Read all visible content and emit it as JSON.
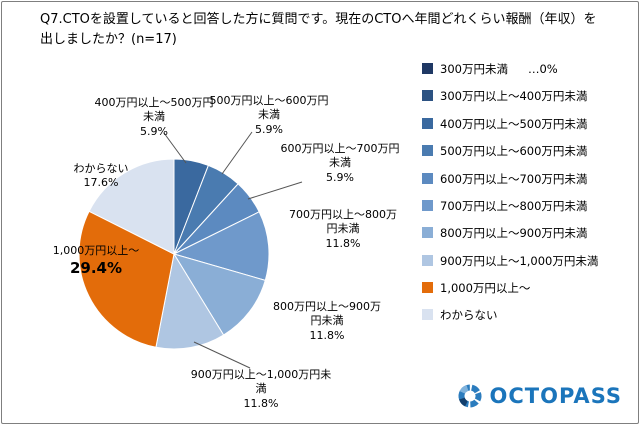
{
  "title": "Q7.CTOを設置していると回答した方に質問です。現在のCTOへ年間どれくらい報酬（年収）を出しましたか？(n=17)",
  "chart_data": {
    "type": "pie",
    "title": "Q7.CTOを設置していると回答した方に質問です。現在のCTOへ年間どれくらい報酬（年収）を出しましたか？(n=17)",
    "n": 17,
    "categories": [
      "300万円未満",
      "300万円以上～400万円未満",
      "400万円以上～500万円未満",
      "500万円以上～600万円未満",
      "600万円以上～700万円未満",
      "700万円以上～800万円未満",
      "800万円以上～900万円未満",
      "900万円以上～1,000万円未満",
      "1,000万円以上～",
      "わからない"
    ],
    "values": [
      0,
      0,
      5.9,
      5.9,
      5.9,
      11.8,
      11.8,
      11.8,
      29.4,
      17.6
    ],
    "colors": [
      "#1f3864",
      "#2c5282",
      "#3a699f",
      "#4a7bb0",
      "#5c8ac0",
      "#6f99cb",
      "#8aaed6",
      "#afc6e2",
      "#e36c0a",
      "#d9e2f0"
    ],
    "legend_position": "right",
    "first_legend_note": "…0%",
    "start_angle_deg": 0,
    "direction": "clockwise"
  },
  "callouts": [
    {
      "label": "400万円以上～500万円未満",
      "value": "5.9%"
    },
    {
      "label": "500万円以上～600万円未満",
      "value": "5.9%"
    },
    {
      "label": "600万円以上～700万円未満",
      "value": "5.9%"
    },
    {
      "label": "700万円以上～800万円未満",
      "value": "11.8%"
    },
    {
      "label": "800万円以上～900万円未満",
      "value": "11.8%"
    },
    {
      "label": "900万円以上～1,000万円未満",
      "value": "11.8%"
    },
    {
      "label": "1,000万円以上～",
      "value": "29.4%"
    },
    {
      "label": "わからない",
      "value": "17.6%"
    }
  ],
  "footer": {
    "logo_text": "OCTOPASS"
  }
}
